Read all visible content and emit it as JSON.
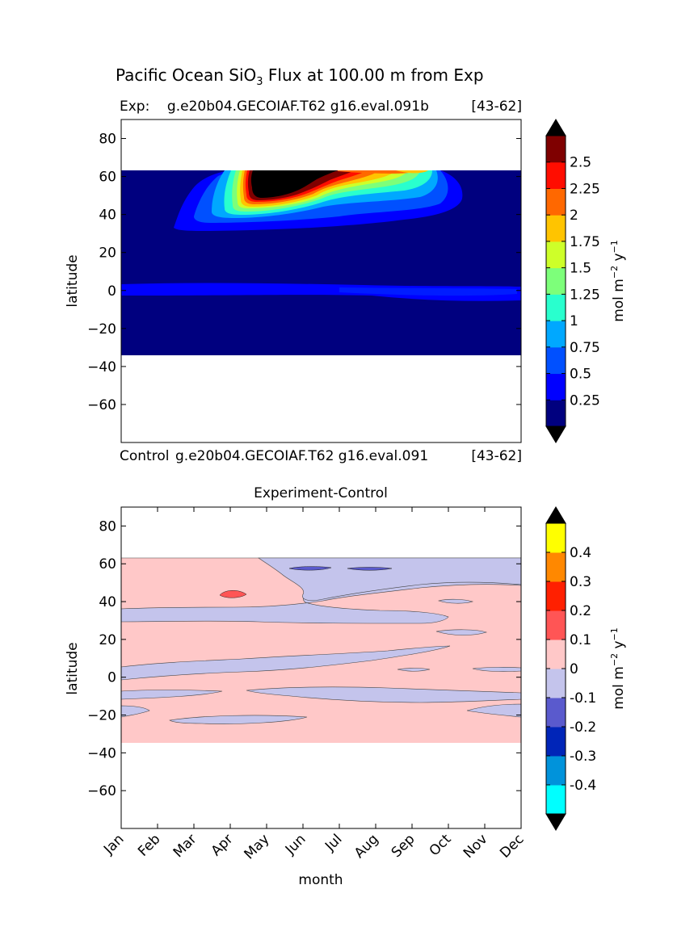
{
  "figure": {
    "title_main": "Pacific Ocean SiO",
    "title_sub": "3",
    "title_rest": " Flux at 100.00 m from Exp"
  },
  "chart_data": [
    {
      "type": "contourf",
      "panel": "top",
      "subtitle_left": "Exp:    g.e20b04.GECOIAF.T62 g16.eval.091b",
      "subtitle_right": "[43-62]",
      "bottom_left": "Control",
      "bottom_mid": "g.e20b04.GECOIAF.T62 g16.eval.091",
      "bottom_right": "[43-62]",
      "ylabel": "latitude",
      "xlim": [
        0,
        11
      ],
      "ylim": [
        -80,
        90
      ],
      "yticks": [
        80,
        60,
        40,
        20,
        0,
        -20,
        -40,
        -60
      ],
      "data_lat_range": [
        -34,
        63
      ],
      "colorbar": {
        "levels_labels": [
          "0.25",
          "0.5",
          "0.75",
          "1",
          "1.25",
          "1.5",
          "1.75",
          "2",
          "2.25",
          "2.5"
        ],
        "colors": [
          "#00007f",
          "#0000ff",
          "#0050ff",
          "#00a8ff",
          "#29ffce",
          "#7dff7a",
          "#ceff29",
          "#ffc400",
          "#ff6800",
          "#ff0d00",
          "#7f0000"
        ],
        "extend_colors": {
          "over": "#000000",
          "under": "#000000"
        },
        "label": "mol m",
        "label_sup1": "−2",
        "label_mid": " y",
        "label_sup2": "−1"
      }
    },
    {
      "type": "contourf",
      "panel": "bottom",
      "title": "Experiment-Control",
      "ylabel": "latitude",
      "xlabel": "month",
      "xlim": [
        0,
        11
      ],
      "ylim": [
        -80,
        90
      ],
      "yticks": [
        80,
        60,
        40,
        20,
        0,
        -20,
        -40,
        -60
      ],
      "xticks": [
        "Jan",
        "Feb",
        "Mar",
        "Apr",
        "May",
        "Jun",
        "Jul",
        "Aug",
        "Sep",
        "Oct",
        "Nov",
        "Dec"
      ],
      "data_lat_range": [
        -34,
        63
      ],
      "colorbar": {
        "levels_labels": [
          "-0.4",
          "-0.3",
          "-0.2",
          "-0.1",
          "0",
          "0.1",
          "0.2",
          "0.3",
          "0.4"
        ],
        "colors": [
          "#00ffff",
          "#0093db",
          "#0025b8",
          "#5a5acd",
          "#c4c4ec",
          "#ffc8c8",
          "#ff5555",
          "#ff2000",
          "#ff8800",
          "#ffff00"
        ],
        "extend_colors": {
          "over": "#000000",
          "under": "#000000"
        },
        "label": "mol m",
        "label_sup1": "−2",
        "label_mid": " y",
        "label_sup2": "−1"
      }
    }
  ]
}
